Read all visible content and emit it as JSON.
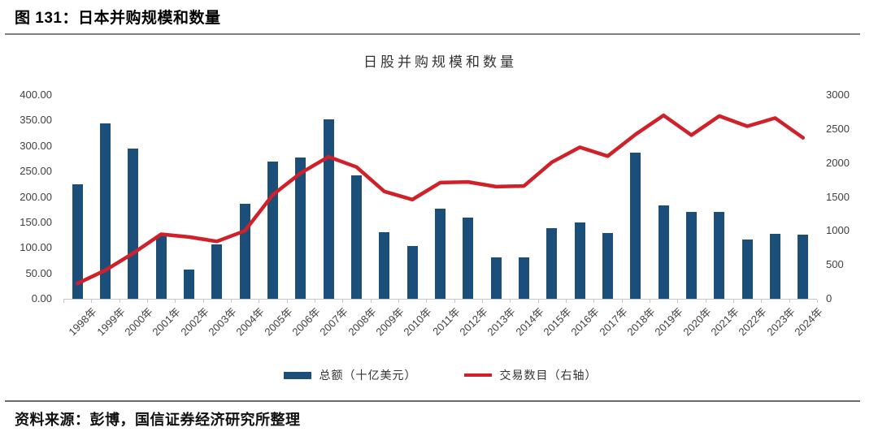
{
  "header": {
    "title": "图 131：日本并购规模和数量"
  },
  "source": {
    "text": "资料来源：彭博，国信证券经济研究所整理"
  },
  "colors": {
    "bar": "#1b4e79",
    "line": "#d0212b",
    "axis_text": "#3f3f3f",
    "axis_line": "#c6c6c6",
    "divider_top": "#7f7f7f",
    "divider_bottom": "#6a6a6a"
  },
  "chart_data": {
    "type": "combo-bar-line",
    "title": "日股并购规模和数量",
    "grid": false,
    "legend_position": "bottom",
    "categories": [
      "1998年",
      "1999年",
      "2000年",
      "2001年",
      "2002年",
      "2003年",
      "2004年",
      "2005年",
      "2006年",
      "2007年",
      "2008年",
      "2009年",
      "2010年",
      "2011年",
      "2012年",
      "2013年",
      "2014年",
      "2015年",
      "2016年",
      "2017年",
      "2018年",
      "2019年",
      "2020年",
      "2021年",
      "2022年",
      "2023年",
      "2024年"
    ],
    "series": [
      {
        "name": "总额（十亿美元）",
        "type": "bar",
        "axis": "left",
        "color": "#1b4e79",
        "values": [
          225,
          345,
          295,
          125,
          57,
          107,
          187,
          270,
          278,
          352,
          242,
          131,
          103,
          177,
          160,
          82,
          82,
          139,
          150,
          129,
          287,
          183,
          170,
          170,
          117,
          127,
          126
        ]
      },
      {
        "name": "交易数目（右轴）",
        "type": "line",
        "axis": "right",
        "color": "#d0212b",
        "values": [
          225,
          420,
          670,
          950,
          910,
          845,
          1000,
          1530,
          1850,
          2090,
          1940,
          1580,
          1460,
          1710,
          1720,
          1650,
          1660,
          2010,
          2230,
          2100,
          2420,
          2700,
          2410,
          2690,
          2540,
          2660,
          2370
        ]
      }
    ],
    "left_axis": {
      "min": 0,
      "max": 400,
      "step": 50,
      "tick_labels": [
        "0.00",
        "50.00",
        "100.00",
        "150.00",
        "200.00",
        "250.00",
        "300.00",
        "350.00",
        "400.00"
      ]
    },
    "right_axis": {
      "min": 0,
      "max": 3000,
      "step": 500,
      "tick_labels": [
        "0",
        "500",
        "1000",
        "1500",
        "2000",
        "2500",
        "3000"
      ]
    }
  }
}
